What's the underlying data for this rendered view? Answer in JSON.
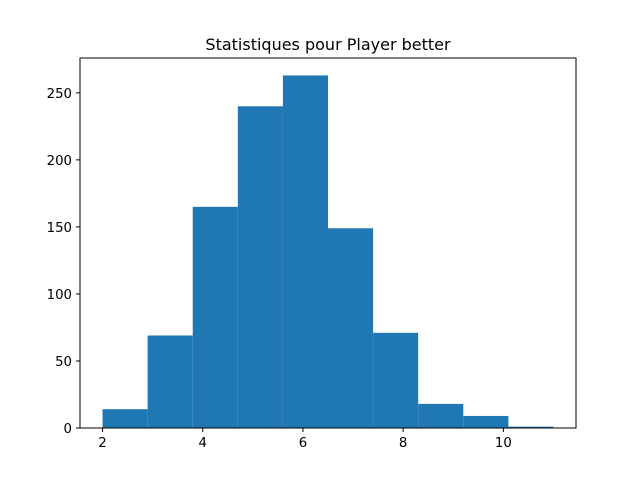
{
  "chart_data": {
    "type": "bar",
    "title": "Statistiques pour Player better",
    "xlabel": "",
    "ylabel": "",
    "bin_edges": [
      2.0,
      2.9,
      3.8,
      4.7,
      5.6,
      6.5,
      7.4,
      8.3,
      9.2,
      10.1,
      11.0
    ],
    "values": [
      14,
      69,
      165,
      240,
      263,
      149,
      71,
      18,
      9,
      1
    ],
    "color": "#1f77b4",
    "xlim": [
      1.55,
      11.45
    ],
    "ylim": [
      0,
      276
    ],
    "xticks": [
      2,
      4,
      6,
      8,
      10
    ],
    "yticks": [
      0,
      50,
      100,
      150,
      200,
      250
    ],
    "grid": false,
    "legend": "none"
  }
}
